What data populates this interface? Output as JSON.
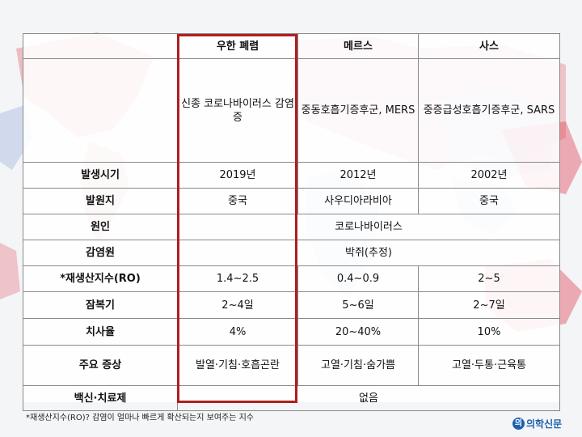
{
  "table": {
    "columns": [
      "우한 폐렴",
      "메르스",
      "사스"
    ],
    "rows": {
      "name": [
        "신종 코로나바이러스 감염증",
        "중동호흡기증후군, MERS",
        "중증급성호흡기증후군, SARS"
      ],
      "onset": {
        "label": "발생시기",
        "values": [
          "2019년",
          "2012년",
          "2002년"
        ]
      },
      "origin": {
        "label": "발원지",
        "values": [
          "중국",
          "사우디아라비아",
          "중국"
        ]
      },
      "cause": {
        "label": "원인",
        "value": "코로나바이러스"
      },
      "source": {
        "label": "감염원",
        "value": "박쥐(추정)"
      },
      "r0": {
        "label": "*재생산지수(RO)",
        "values": [
          "1.4~2.5",
          "0.4~0.9",
          "2~5"
        ]
      },
      "incubation": {
        "label": "잠복기",
        "values": [
          "2~4일",
          "5~6일",
          "2~7일"
        ]
      },
      "fatality": {
        "label": "치사율",
        "values": [
          "4%",
          "20~40%",
          "10%"
        ]
      },
      "symptoms": {
        "label": "주요 증상",
        "values": [
          "발열·기침·호흡곤란",
          "고열·기침·숨가쁨",
          "고열·두통·근육통"
        ]
      },
      "treatment": {
        "label": "백신·치료제",
        "value": "없음"
      }
    }
  },
  "footnote": "*재생산지수(RO)? 감염이 얼마나 빠르게 확산되는지 보여주는 지수",
  "logo": {
    "mark": "의",
    "text": "의학신문",
    "icon": "medical-newspaper-logo-icon"
  },
  "colors": {
    "highlight": "#b01e1e",
    "map_red": "#e05060",
    "map_blue": "#3a6fc0",
    "logo": "#1d5fae"
  }
}
